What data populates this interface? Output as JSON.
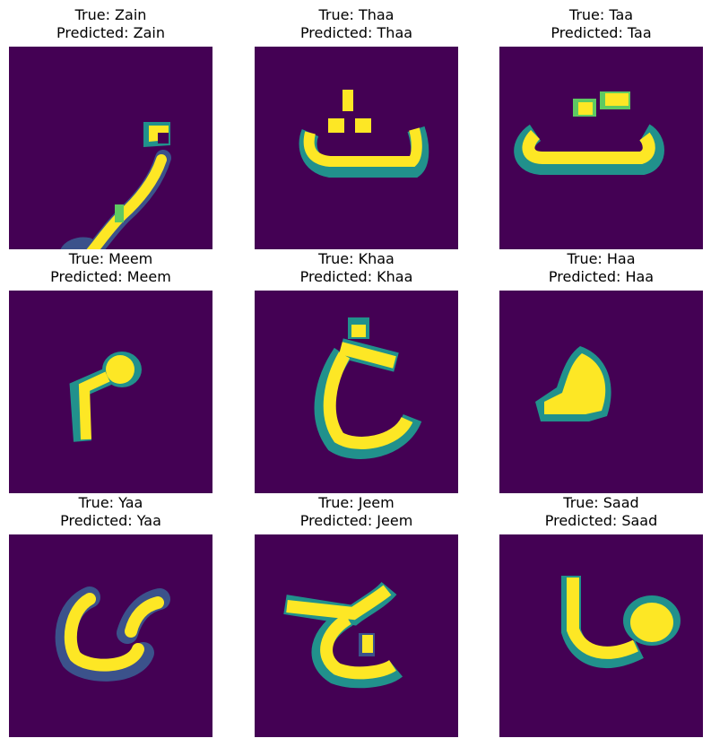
{
  "colors": {
    "background": "#440154",
    "dark": "#3b528b",
    "mid": "#21918c",
    "green": "#5ec962",
    "yellow": "#fde725"
  },
  "panels": [
    {
      "true_label": "True: Zain",
      "predicted_label": "Predicted: Zain"
    },
    {
      "true_label": "True: Thaa",
      "predicted_label": "Predicted: Thaa"
    },
    {
      "true_label": "True: Taa",
      "predicted_label": "Predicted: Taa"
    },
    {
      "true_label": "True: Meem",
      "predicted_label": "Predicted: Meem"
    },
    {
      "true_label": "True: Khaa",
      "predicted_label": "Predicted: Khaa"
    },
    {
      "true_label": "True: Haa",
      "predicted_label": "Predicted: Haa"
    },
    {
      "true_label": "True: Yaa",
      "predicted_label": "Predicted: Yaa"
    },
    {
      "true_label": "True: Jeem",
      "predicted_label": "Predicted: Jeem"
    },
    {
      "true_label": "True: Saad",
      "predicted_label": "Predicted: Saad"
    }
  ]
}
